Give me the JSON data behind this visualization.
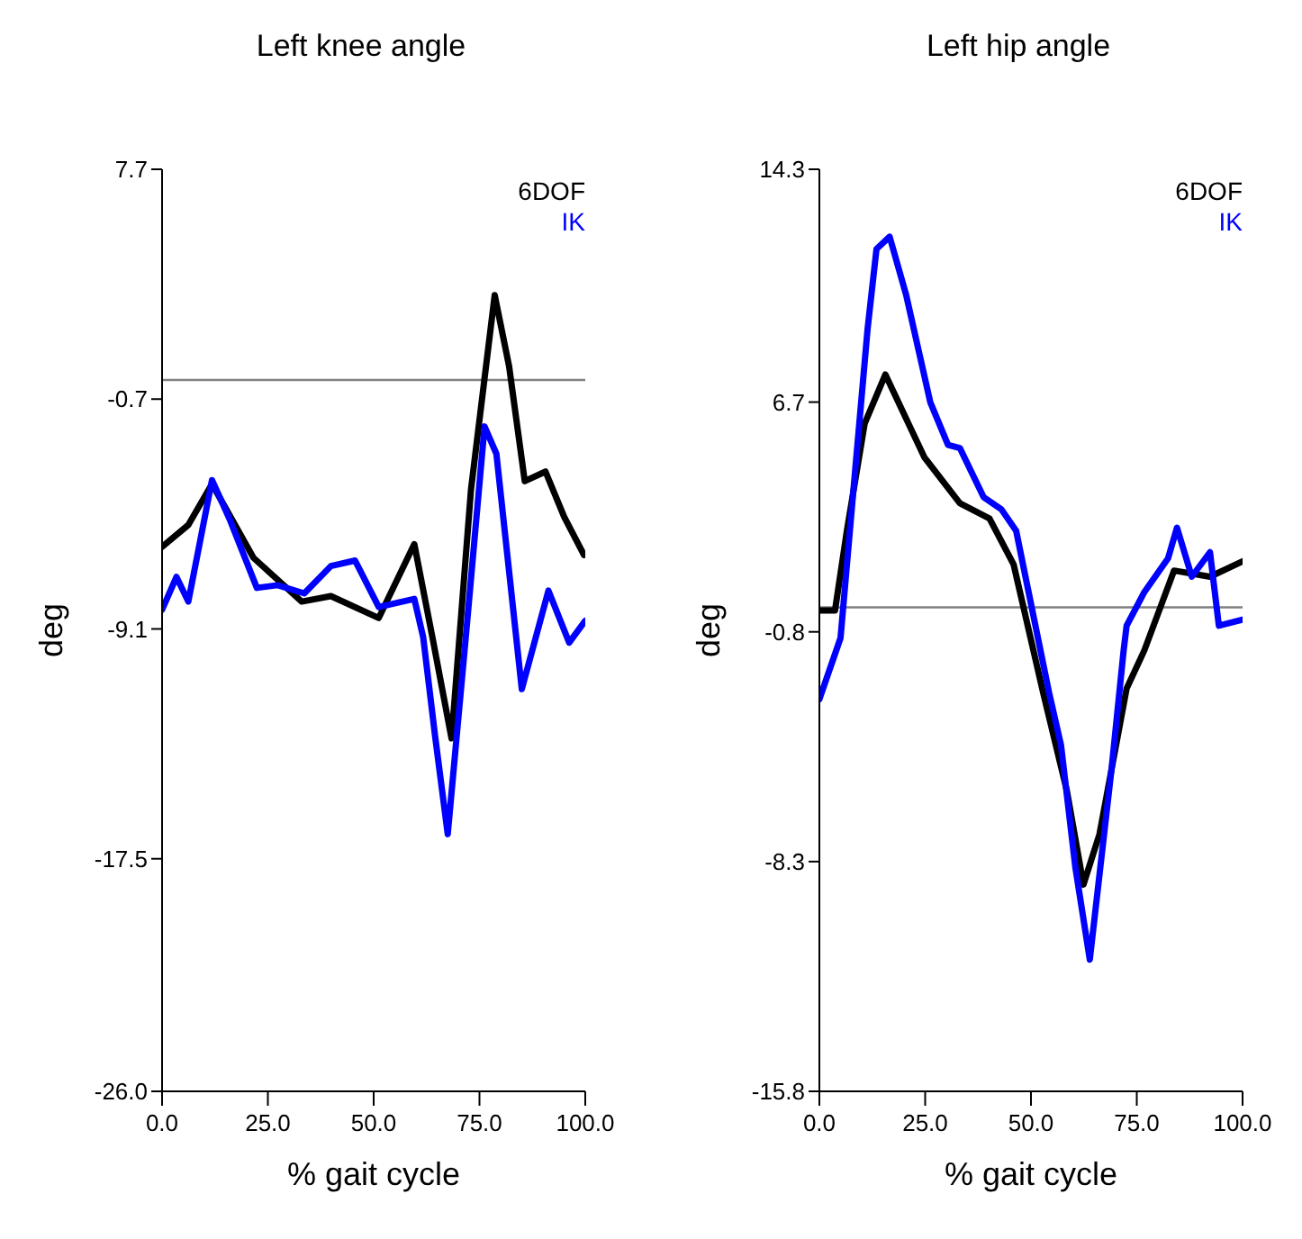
{
  "chart_data": [
    {
      "type": "line",
      "title": "Left knee angle",
      "xlabel": "% gait cycle",
      "ylabel": "deg",
      "xlim": [
        0,
        100
      ],
      "xticks": [
        {
          "value": 0,
          "label": "0.0"
        },
        {
          "value": 25,
          "label": "25.0"
        },
        {
          "value": 50,
          "label": "50.0"
        },
        {
          "value": 75,
          "label": "75.0"
        },
        {
          "value": 100,
          "label": "100.0"
        }
      ],
      "ylim": [
        -26,
        7.7
      ],
      "yticks": [
        {
          "value": -26,
          "label": "-26.0"
        },
        -17.5,
        -9.1,
        -0.7,
        7.7
      ],
      "grid": false,
      "legend": "top right",
      "ref_lines": [
        {
          "axis": "y",
          "value": 0,
          "color": "#808080"
        }
      ],
      "series": [
        {
          "name": "6DOF",
          "color": "#000000",
          "x": [
            0,
            6.2,
            11.8,
            21.6,
            33,
            39.9,
            51.2,
            59.6,
            64,
            68.4,
            73,
            78.6,
            82,
            85.7,
            90.6,
            95,
            99.7
          ],
          "values": [
            -6.1,
            -5.3,
            -3.8,
            -6.5,
            -8.1,
            -7.9,
            -8.7,
            -6,
            -9.5,
            -13.1,
            -4,
            3.1,
            0.5,
            -3.7,
            -3.35,
            -5,
            -6.4
          ]
        },
        {
          "name": "IK",
          "color": "#0000ff",
          "x": [
            0,
            3.4,
            6.2,
            11.8,
            16,
            22.4,
            27.3,
            33.6,
            39.9,
            45.6,
            51.2,
            59.6,
            61.7,
            64.5,
            67.5,
            72,
            76.2,
            79,
            85,
            91.3,
            96.2,
            100
          ],
          "values": [
            -8.4,
            -7.2,
            -8.1,
            -3.66,
            -5.1,
            -7.6,
            -7.5,
            -7.8,
            -6.8,
            -6.6,
            -8.3,
            -8,
            -9.4,
            -13,
            -16.6,
            -9,
            -1.7,
            -2.7,
            -11.3,
            -7.7,
            -9.6,
            -8.8
          ]
        }
      ]
    },
    {
      "type": "line",
      "title": "Left hip angle",
      "xlabel": "% gait cycle",
      "ylabel": "deg",
      "xlim": [
        0,
        100
      ],
      "xticks": [
        {
          "value": 0,
          "label": "0.0"
        },
        {
          "value": 25,
          "label": "25.0"
        },
        {
          "value": 50,
          "label": "50.0"
        },
        {
          "value": 75,
          "label": "75.0"
        },
        {
          "value": 100,
          "label": "100.0"
        }
      ],
      "ylim": [
        -15.8,
        14.3
      ],
      "yticks": [
        -15.8,
        -8.3,
        -0.8,
        6.7,
        14.3
      ],
      "grid": false,
      "legend": "top right",
      "ref_lines": [
        {
          "axis": "y",
          "value": 0,
          "color": "#808080"
        }
      ],
      "series": [
        {
          "name": "6DOF",
          "color": "#000000",
          "x": [
            0,
            3.7,
            6.5,
            10.7,
            15.6,
            24.8,
            33.2,
            40.2,
            45.9,
            52.9,
            58.5,
            62.4,
            66.2,
            72.6,
            76.8,
            83.8,
            92.3,
            100
          ],
          "values": [
            -0.1,
            -0.1,
            2.5,
            6,
            7.6,
            4.9,
            3.4,
            2.9,
            1.4,
            -2.8,
            -6,
            -9.05,
            -7.4,
            -2.65,
            -1.4,
            1.2,
            1,
            1.5
          ]
        },
        {
          "name": "IK",
          "color": "#0000ff",
          "x": [
            0,
            5,
            7.9,
            11.4,
            13.5,
            16.6,
            20.5,
            26.2,
            30.4,
            33.2,
            38.8,
            43,
            46.5,
            48.7,
            54.3,
            57.1,
            60.5,
            63.9,
            69.1,
            71.9,
            72.6,
            76.8,
            82.4,
            84.5,
            88,
            92.3,
            94.4,
            100
          ],
          "values": [
            -3,
            -1,
            3.6,
            9.1,
            11.7,
            12.1,
            10.2,
            6.7,
            5.3,
            5.2,
            3.6,
            3.2,
            2.5,
            1,
            -2.8,
            -4.5,
            -8.5,
            -11.5,
            -5.2,
            -1.4,
            -0.6,
            0.5,
            1.6,
            2.6,
            1,
            1.8,
            -0.6,
            -0.4
          ]
        }
      ]
    }
  ]
}
